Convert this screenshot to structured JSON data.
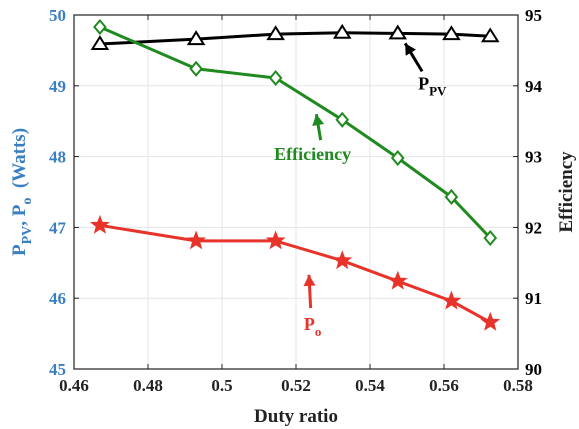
{
  "chart_data": {
    "type": "line",
    "xlabel": "Duty ratio",
    "ylabel_left": {
      "parts": [
        {
          "text": "P",
          "sub": "PV"
        },
        {
          "text": ", "
        },
        {
          "text": "P",
          "sub": "o"
        },
        {
          "text": "  (Watts)"
        }
      ]
    },
    "ylabel_right": "Efficiency",
    "xlim": [
      0.46,
      0.58
    ],
    "ylim_left": [
      45,
      50
    ],
    "ylim_right": [
      90,
      95
    ],
    "xticks": [
      "0.46",
      "0.48",
      "0.5",
      "0.52",
      "0.54",
      "0.56",
      "0.58"
    ],
    "yticks_left": [
      "45",
      "46",
      "47",
      "48",
      "49",
      "50"
    ],
    "yticks_right": [
      "90",
      "91",
      "92",
      "93",
      "94",
      "95"
    ],
    "grid": true,
    "series": [
      {
        "key": "ppv",
        "axis": "right",
        "marker": "triangle",
        "color": "#000000",
        "x": [
          0.467,
          0.493,
          0.5145,
          0.5325,
          0.5475,
          0.562,
          0.5725
        ],
        "y": [
          94.59,
          94.66,
          94.73,
          94.75,
          94.74,
          94.73,
          94.7
        ]
      },
      {
        "key": "efficiency",
        "axis": "right",
        "marker": "diamond",
        "color": "#1f8a1f",
        "x": [
          0.467,
          0.493,
          0.5145,
          0.5325,
          0.5475,
          0.562,
          0.5725
        ],
        "y": [
          94.83,
          94.24,
          94.11,
          93.52,
          92.98,
          92.43,
          91.85
        ]
      },
      {
        "key": "po",
        "axis": "left",
        "marker": "star",
        "color": "#e8332a",
        "x": [
          0.467,
          0.493,
          0.5145,
          0.5325,
          0.5475,
          0.562,
          0.5725
        ],
        "y": [
          47.03,
          46.81,
          46.81,
          46.53,
          46.24,
          45.96,
          45.66
        ]
      }
    ],
    "annotations": [
      {
        "key": "ppv",
        "text": "P",
        "sub": "PV",
        "color": "#000000",
        "x": 0.553,
        "y_right": 93.95,
        "arrow_to": [
          0.5495,
          94.6
        ],
        "axis": "right"
      },
      {
        "key": "efficiency",
        "text": "Efficiency",
        "sub": "",
        "color": "#1f8a1f",
        "x": 0.5245,
        "y_right": 92.95,
        "arrow_to": [
          0.5255,
          93.6
        ],
        "axis": "right"
      },
      {
        "key": "po",
        "text": "P",
        "sub": "o",
        "color": "#e8332a",
        "x": 0.5245,
        "y_left": 45.55,
        "arrow_to": [
          0.5235,
          46.33
        ],
        "axis": "left"
      }
    ],
    "left_axis_color": "#3a7fc1",
    "right_axis_color": "#000000"
  }
}
